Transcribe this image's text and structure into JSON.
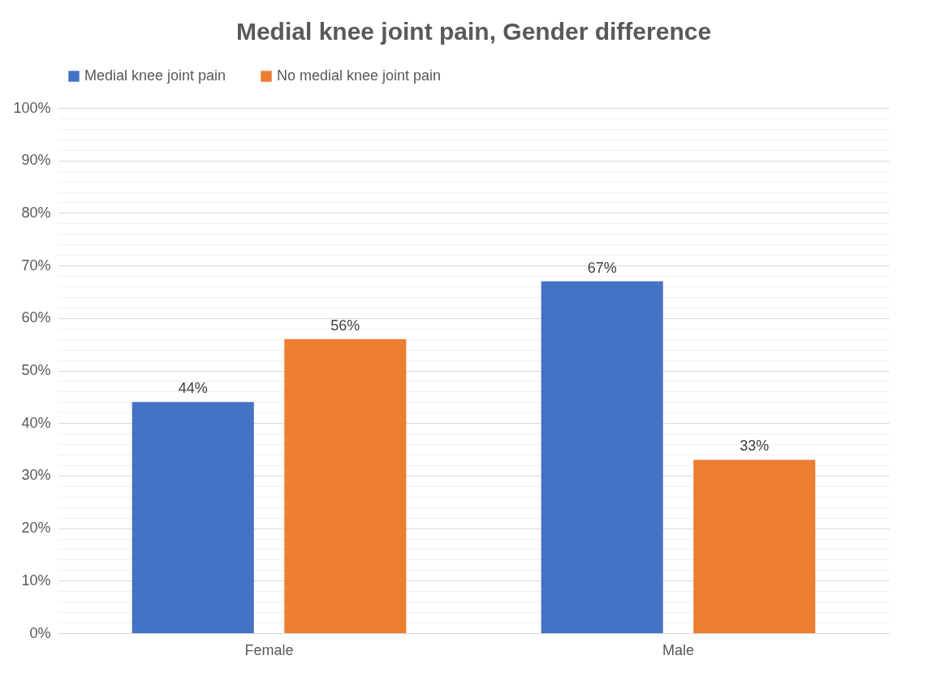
{
  "chart_data": {
    "type": "bar",
    "title": "Medial knee joint pain, Gender difference",
    "categories": [
      "Female",
      "Male"
    ],
    "series": [
      {
        "name": "Medial knee joint pain",
        "color": "#4472c4",
        "values": [
          44,
          67
        ],
        "value_labels": [
          "44%",
          "67%"
        ]
      },
      {
        "name": "No medial knee joint pain",
        "color": "#ed7d31",
        "values": [
          56,
          33
        ],
        "value_labels": [
          "56%",
          "33%"
        ]
      }
    ],
    "ylim": [
      0,
      100
    ],
    "yticks": [
      {
        "value": 0,
        "label": "0%"
      },
      {
        "value": 2,
        "label": null
      },
      {
        "value": 4,
        "label": null
      },
      {
        "value": 6,
        "label": null
      },
      {
        "value": 8,
        "label": null
      },
      {
        "value": 10,
        "label": "10%"
      },
      {
        "value": 12,
        "label": null
      },
      {
        "value": 14,
        "label": null
      },
      {
        "value": 16,
        "label": null
      },
      {
        "value": 18,
        "label": null
      },
      {
        "value": 20,
        "label": "20%"
      },
      {
        "value": 22,
        "label": null
      },
      {
        "value": 24,
        "label": null
      },
      {
        "value": 26,
        "label": null
      },
      {
        "value": 28,
        "label": null
      },
      {
        "value": 30,
        "label": "30%"
      },
      {
        "value": 32,
        "label": null
      },
      {
        "value": 34,
        "label": null
      },
      {
        "value": 36,
        "label": null
      },
      {
        "value": 38,
        "label": null
      },
      {
        "value": 40,
        "label": "40%"
      },
      {
        "value": 42,
        "label": null
      },
      {
        "value": 44,
        "label": null
      },
      {
        "value": 46,
        "label": null
      },
      {
        "value": 48,
        "label": null
      },
      {
        "value": 50,
        "label": "50%"
      },
      {
        "value": 52,
        "label": null
      },
      {
        "value": 54,
        "label": null
      },
      {
        "value": 56,
        "label": null
      },
      {
        "value": 58,
        "label": null
      },
      {
        "value": 60,
        "label": "60%"
      },
      {
        "value": 62,
        "label": null
      },
      {
        "value": 64,
        "label": null
      },
      {
        "value": 66,
        "label": null
      },
      {
        "value": 68,
        "label": null
      },
      {
        "value": 70,
        "label": "70%"
      },
      {
        "value": 72,
        "label": null
      },
      {
        "value": 74,
        "label": null
      },
      {
        "value": 76,
        "label": null
      },
      {
        "value": 78,
        "label": null
      },
      {
        "value": 80,
        "label": "80%"
      },
      {
        "value": 82,
        "label": null
      },
      {
        "value": 84,
        "label": null
      },
      {
        "value": 86,
        "label": null
      },
      {
        "value": 88,
        "label": null
      },
      {
        "value": 90,
        "label": "90%"
      },
      {
        "value": 92,
        "label": null
      },
      {
        "value": 94,
        "label": null
      },
      {
        "value": 96,
        "label": null
      },
      {
        "value": 98,
        "label": null
      },
      {
        "value": 100,
        "label": "100%"
      }
    ],
    "grid": "y",
    "legend": "top"
  }
}
